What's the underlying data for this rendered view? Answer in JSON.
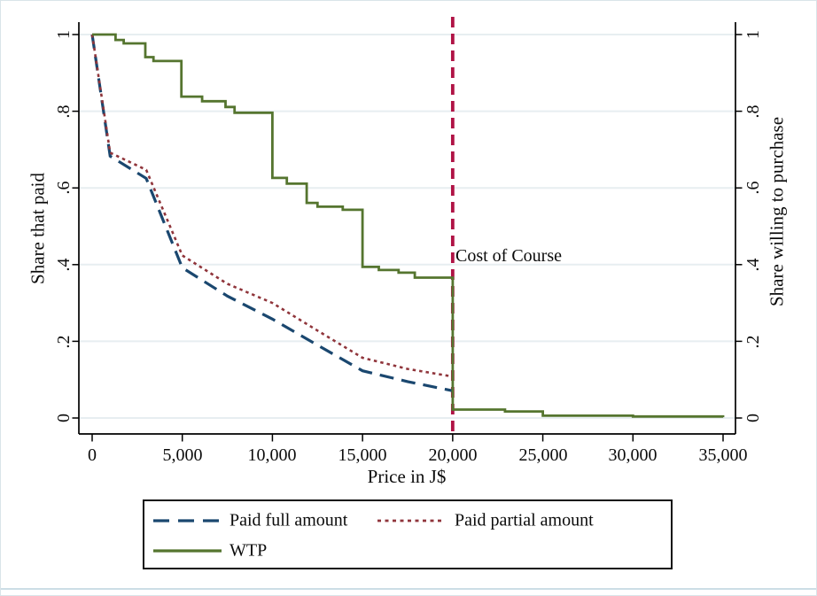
{
  "chart_data": {
    "type": "line",
    "title": "",
    "xlabel": "Price in J$",
    "ylabel_left": "Share that paid",
    "ylabel_right": "Share willing to purchase",
    "xlim": [
      0,
      35000
    ],
    "ylim": [
      0,
      1
    ],
    "grid": true,
    "x_tick_values": [
      0,
      5000,
      10000,
      15000,
      20000,
      25000,
      30000,
      35000
    ],
    "x_tick_labels": [
      "0",
      "5,000",
      "10,000",
      "15,000",
      "20,000",
      "25,000",
      "30,000",
      "35,000"
    ],
    "y_tick_values": [
      0,
      0.2,
      0.4,
      0.6,
      0.8,
      1
    ],
    "y_tick_labels": [
      "0",
      ".2",
      ".4",
      ".6",
      ".8",
      "1"
    ],
    "colors": {
      "axis": "#000000",
      "grid": "#e7eef1",
      "background": "#ffffff",
      "navy": "#1a476f",
      "maroon": "#90353b",
      "olive": "#55752f",
      "cranberry": "#b01345"
    },
    "reference_line": {
      "x": 20000,
      "label": "Cost of Course",
      "color": "#b01345",
      "style": "dashed",
      "orientation": "vertical"
    },
    "legend": {
      "position": "bottom",
      "border": true,
      "entries": [
        "Paid full amount",
        "Paid partial amount",
        "WTP"
      ]
    },
    "series": [
      {
        "name": "Paid full amount",
        "color": "#1a476f",
        "line_style": "long-dash",
        "interpolation": "linear",
        "points": [
          [
            0,
            1.0
          ],
          [
            1000,
            0.683
          ],
          [
            3000,
            0.625
          ],
          [
            5000,
            0.392
          ],
          [
            7500,
            0.318
          ],
          [
            10000,
            0.258
          ],
          [
            12500,
            0.19
          ],
          [
            15000,
            0.123
          ],
          [
            17500,
            0.095
          ],
          [
            20000,
            0.071
          ]
        ]
      },
      {
        "name": "Paid partial amount",
        "color": "#90353b",
        "line_style": "dotted",
        "interpolation": "linear",
        "points": [
          [
            0,
            1.0
          ],
          [
            1000,
            0.692
          ],
          [
            3000,
            0.647
          ],
          [
            5000,
            0.424
          ],
          [
            7500,
            0.35
          ],
          [
            10000,
            0.3
          ],
          [
            12500,
            0.228
          ],
          [
            15000,
            0.157
          ],
          [
            17500,
            0.128
          ],
          [
            20000,
            0.108
          ]
        ]
      },
      {
        "name": "WTP",
        "color": "#55752f",
        "line_style": "solid",
        "interpolation": "step-after",
        "points": [
          [
            0,
            1.0
          ],
          [
            1300,
            0.986
          ],
          [
            1750,
            0.977
          ],
          [
            2950,
            0.941
          ],
          [
            3400,
            0.931
          ],
          [
            4950,
            0.838
          ],
          [
            6100,
            0.826
          ],
          [
            7400,
            0.811
          ],
          [
            7900,
            0.796
          ],
          [
            10000,
            0.626
          ],
          [
            10800,
            0.611
          ],
          [
            11900,
            0.561
          ],
          [
            12500,
            0.551
          ],
          [
            13900,
            0.543
          ],
          [
            15000,
            0.394
          ],
          [
            15900,
            0.386
          ],
          [
            17000,
            0.379
          ],
          [
            17900,
            0.366
          ],
          [
            20000,
            0.022
          ],
          [
            22900,
            0.017
          ],
          [
            25000,
            0.006
          ],
          [
            30000,
            0.004
          ],
          [
            35000,
            0.002
          ]
        ]
      }
    ]
  }
}
